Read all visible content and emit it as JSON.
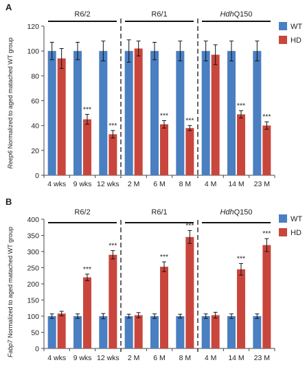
{
  "chart_data": [
    {
      "panel": "A",
      "type": "bar",
      "title": "",
      "ylabel_italic": "Reep6",
      "ylabel_rest": " Normalized to aged matached WT group",
      "xlabel": "",
      "ylim": [
        0,
        120
      ],
      "yticks": [
        0,
        20,
        40,
        60,
        80,
        100,
        120
      ],
      "categories": [
        "4 wks",
        "9 wks",
        "12 wks",
        "2 M",
        "6 M",
        "8 M",
        "4 M",
        "14 M",
        "23 M"
      ],
      "groups": [
        {
          "label": "R6/2",
          "italic": "",
          "start": 0,
          "end": 2
        },
        {
          "label": "R6/1",
          "italic": "",
          "start": 3,
          "end": 5
        },
        {
          "label": "Q150",
          "italic": "Hdh",
          "start": 6,
          "end": 8
        }
      ],
      "series": [
        {
          "name": "WT",
          "color": "#4a7fc1",
          "values": [
            100,
            100,
            100,
            100,
            100,
            100,
            100,
            100,
            100
          ],
          "errors": [
            7,
            7,
            8,
            9,
            7,
            8,
            8,
            8,
            8
          ]
        },
        {
          "name": "HD",
          "color": "#c9463d",
          "values": [
            94,
            45,
            33,
            102,
            41,
            38,
            97,
            49,
            40
          ],
          "errors": [
            8,
            4,
            3,
            6,
            3,
            2,
            8,
            3,
            3
          ]
        }
      ],
      "significance": [
        "",
        "***",
        "***",
        "",
        "***",
        "***",
        "",
        "***",
        "***"
      ],
      "legend_position": "top-right"
    },
    {
      "panel": "B",
      "type": "bar",
      "title": "",
      "ylabel_italic": "Fabp7",
      "ylabel_rest": " Normalized to aged matached WT group",
      "xlabel": "",
      "ylim": [
        0,
        400
      ],
      "yticks": [
        0,
        50,
        100,
        150,
        200,
        250,
        300,
        350,
        400
      ],
      "categories": [
        "4 wks",
        "9 wks",
        "12 wks",
        "2 M",
        "6 M",
        "8 M",
        "4 M",
        "14 M",
        "23 M"
      ],
      "groups": [
        {
          "label": "R6/2",
          "italic": "",
          "start": 0,
          "end": 2
        },
        {
          "label": "R6/1",
          "italic": "",
          "start": 3,
          "end": 5
        },
        {
          "label": "Q150",
          "italic": "Hdh",
          "start": 6,
          "end": 8
        }
      ],
      "series": [
        {
          "name": "WT",
          "color": "#4a7fc1",
          "values": [
            100,
            100,
            100,
            100,
            100,
            100,
            100,
            100,
            100
          ],
          "errors": [
            7,
            7,
            8,
            6,
            7,
            6,
            7,
            7,
            7
          ]
        },
        {
          "name": "HD",
          "color": "#c9463d",
          "values": [
            108,
            220,
            290,
            103,
            253,
            345,
            103,
            245,
            320
          ],
          "errors": [
            7,
            10,
            13,
            8,
            15,
            20,
            9,
            18,
            20
          ]
        }
      ],
      "significance": [
        "",
        "***",
        "***",
        "",
        "***",
        "***",
        "",
        "***",
        "***"
      ],
      "legend_position": "top-right"
    }
  ]
}
